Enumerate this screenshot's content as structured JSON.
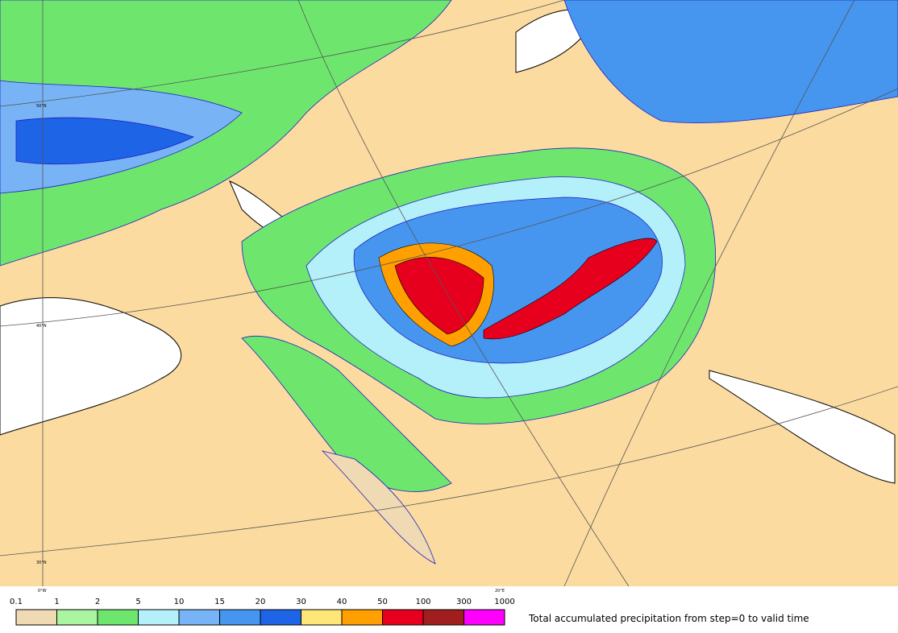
{
  "map": {
    "graticule_labels": [
      "50°N",
      "40°N",
      "30°N",
      "0°W",
      "20°E"
    ],
    "legend": {
      "labels": [
        "0.1",
        "1",
        "2",
        "5",
        "10",
        "15",
        "20",
        "30",
        "40",
        "50",
        "100",
        "300",
        "1000"
      ],
      "colors": [
        "#f0dab4",
        "#aaf5a0",
        "#6ee66e",
        "#b4f0fa",
        "#78b4f5",
        "#4696f0",
        "#1e64e6",
        "#ffe678",
        "#ffa000",
        "#e6001e",
        "#a01e1e",
        "#ff00ff"
      ]
    },
    "caption": "Total accumulated precipitation from step=0 to valid time"
  }
}
